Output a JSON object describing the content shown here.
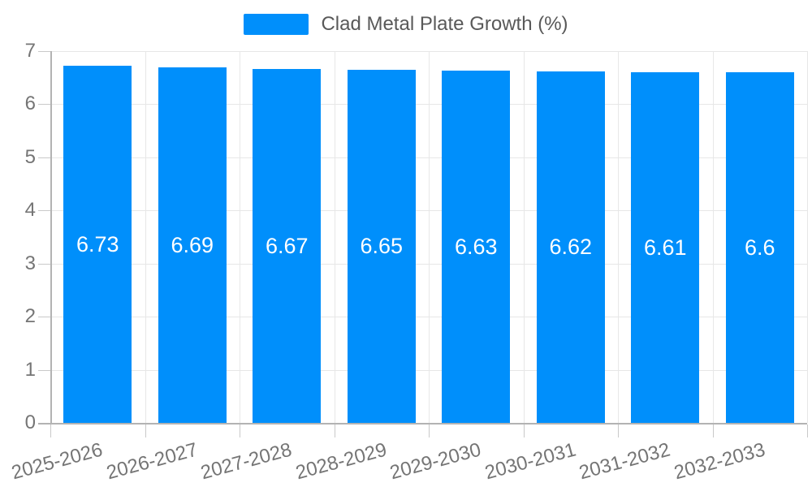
{
  "chart_data": {
    "type": "bar",
    "legend": "Clad Metal Plate Growth (%)",
    "legend_position": "top",
    "categories": [
      "2025-2026",
      "2026-2027",
      "2027-2028",
      "2028-2029",
      "2029-2030",
      "2030-2031",
      "2031-2032",
      "2032-2033"
    ],
    "values": [
      6.73,
      6.69,
      6.67,
      6.65,
      6.63,
      6.62,
      6.61,
      6.6
    ],
    "data_labels": [
      "6.73",
      "6.69",
      "6.67",
      "6.65",
      "6.63",
      "6.62",
      "6.61",
      "6.6"
    ],
    "y_ticks": [
      0,
      1,
      2,
      3,
      4,
      5,
      6,
      7
    ],
    "ylim": [
      0,
      7
    ],
    "xlabel": "",
    "ylabel": "",
    "grid": true,
    "colors": {
      "bar": "#008FFB",
      "grid_line": "#e7e7e7",
      "axis_line": "#b3b3b3",
      "tick_line": "#c9c9c9",
      "tick_label": "#757575",
      "legend_text": "#595959",
      "data_label": "#ffffff",
      "background": "#ffffff"
    }
  }
}
